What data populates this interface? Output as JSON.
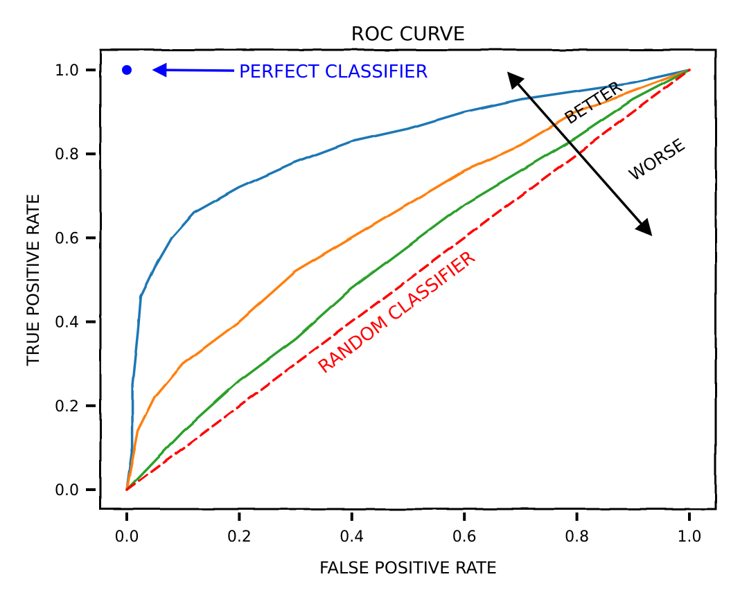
{
  "chart_data": {
    "type": "line",
    "title": "ROC Curve",
    "xlabel": "False Positive Rate",
    "ylabel": "True Positive Rate",
    "xlim": [
      0,
      1
    ],
    "ylim": [
      0,
      1
    ],
    "xticks": [
      "0.0",
      "0.2",
      "0.4",
      "0.6",
      "0.8",
      "1.0"
    ],
    "yticks": [
      "0.0",
      "0.2",
      "0.4",
      "0.6",
      "0.8",
      "1.0"
    ],
    "grid": false,
    "style": "xkcd",
    "series": [
      {
        "color": "#1f77b4",
        "dashed": false,
        "x": [
          0,
          0.01,
          0.01,
          0.02,
          0.025,
          0.05,
          0.08,
          0.12,
          0.2,
          0.3,
          0.4,
          0.5,
          0.6,
          0.7,
          0.8,
          0.9,
          1.0
        ],
        "y": [
          0,
          0.1,
          0.25,
          0.38,
          0.46,
          0.53,
          0.6,
          0.66,
          0.72,
          0.78,
          0.83,
          0.86,
          0.9,
          0.93,
          0.95,
          0.97,
          1.0
        ]
      },
      {
        "color": "#ff7f0e",
        "dashed": false,
        "x": [
          0,
          0.02,
          0.05,
          0.1,
          0.2,
          0.3,
          0.4,
          0.5,
          0.6,
          0.7,
          0.8,
          0.9,
          1.0
        ],
        "y": [
          0,
          0.14,
          0.22,
          0.3,
          0.4,
          0.52,
          0.6,
          0.68,
          0.76,
          0.82,
          0.9,
          0.95,
          1.0
        ]
      },
      {
        "color": "#2ca02c",
        "dashed": false,
        "x": [
          0,
          0.05,
          0.1,
          0.2,
          0.3,
          0.4,
          0.5,
          0.6,
          0.7,
          0.8,
          0.9,
          1.0
        ],
        "y": [
          0,
          0.07,
          0.14,
          0.26,
          0.36,
          0.48,
          0.58,
          0.68,
          0.76,
          0.84,
          0.93,
          1.0
        ]
      },
      {
        "color": "#ff0000",
        "dashed": true,
        "x": [
          0,
          1
        ],
        "y": [
          0,
          1
        ]
      }
    ],
    "points": [
      {
        "x": 0,
        "y": 1,
        "color": "#0000ff"
      }
    ],
    "annotations": {
      "perfect": {
        "text": "Perfect Classifier",
        "color": "#0000ff",
        "arrow_to": [
          0.05,
          1.0
        ]
      },
      "random": {
        "text": "Random Classifier",
        "color": "#ff0000"
      },
      "better": {
        "text": "Better",
        "color": "#000000"
      },
      "worse": {
        "text": "Worse",
        "color": "#000000"
      },
      "double_arrow": {
        "from": [
          0.68,
          0.99
        ],
        "to": [
          0.93,
          0.61
        ]
      }
    }
  }
}
